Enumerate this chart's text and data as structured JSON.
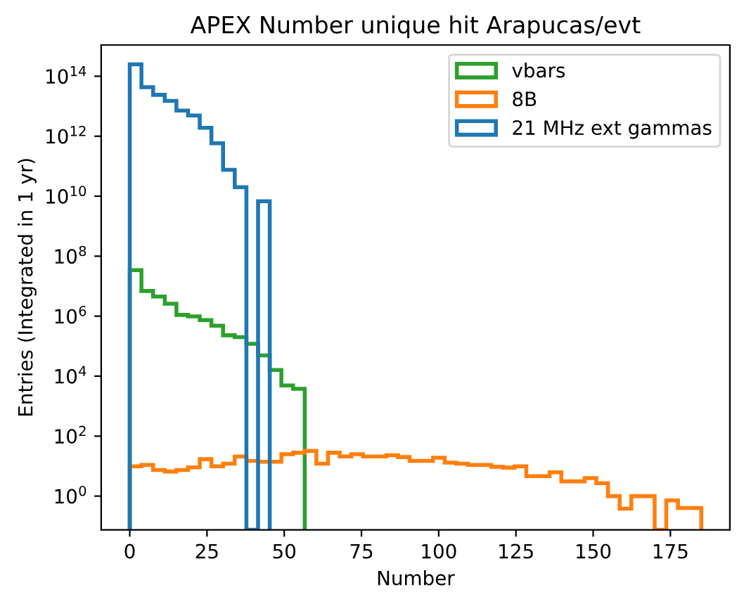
{
  "chart_data": {
    "type": "histogram",
    "title": "APEX Number unique hit Arapucas/evt",
    "xlabel": "Number",
    "ylabel": "Entries (Integrated in 1 yr)",
    "log": "y",
    "bins": [
      0,
      3.78,
      7.55,
      11.33,
      15.1,
      18.88,
      22.65,
      26.43,
      30.2,
      33.98,
      37.76,
      41.53,
      45.31,
      49.08,
      52.86,
      56.63,
      60.41,
      64.18,
      67.96,
      71.73,
      75.51,
      79.29,
      83.06,
      86.84,
      90.61,
      94.39,
      98.16,
      101.94,
      105.71,
      109.49,
      113.27,
      117.04,
      120.82,
      124.59,
      128.37,
      132.14,
      135.92,
      139.69,
      143.47,
      147.24,
      151.02,
      154.8,
      158.57,
      162.35,
      166.12,
      169.9,
      173.67,
      177.45,
      181.22,
      185
    ],
    "series": [
      {
        "name": "vbars",
        "color": "#2ca02c",
        "bins": [
          0,
          3.78,
          7.55,
          11.33,
          15.1,
          18.88,
          22.65,
          26.43,
          30.2,
          33.98,
          37.76,
          41.53,
          45.31,
          49.08,
          52.86,
          56.63
        ],
        "values": [
          34000000.0,
          6900000.0,
          4500000.0,
          2600000.0,
          1100000.0,
          980000.0,
          740000.0,
          480000.0,
          230000.0,
          200000.0,
          120000.0,
          49000.0,
          16000.0,
          4900.0,
          3800.0
        ]
      },
      {
        "name": "8B",
        "color": "#ff7f0e",
        "values": [
          9.8,
          11,
          7.4,
          6.6,
          7.4,
          9.1,
          17,
          9.8,
          12,
          21,
          15,
          14,
          14,
          25,
          28,
          32,
          12,
          28,
          21,
          25,
          21,
          21,
          23,
          20,
          15,
          15,
          19,
          13,
          12,
          11,
          11,
          9.5,
          8.9,
          9.8,
          4.6,
          4.6,
          6.2,
          3.1,
          3.1,
          4.0,
          2.7,
          1.0,
          0.38,
          1.0,
          1.0,
          null,
          0.72,
          0.4,
          0.4
        ]
      },
      {
        "name": "21 MHz ext gammas",
        "color": "#1f77b4",
        "bins": [
          0,
          3.78,
          7.55,
          11.33,
          15.1,
          18.88,
          22.65,
          26.43,
          30.2,
          33.98,
          37.76,
          41.53,
          45.31
        ],
        "values": [
          250000000000000.0,
          43000000000000.0,
          24000000000000.0,
          15000000000000.0,
          7200000000000.0,
          4900000000000.0,
          1900000000000.0,
          580000000000.0,
          76000000000.0,
          20000000000.0,
          null,
          6800000000.0
        ]
      }
    ],
    "xlim": [
      -9.25,
      194.25
    ],
    "xticks": [
      0,
      25,
      50,
      75,
      100,
      125,
      150,
      175
    ],
    "ylim": [
      0.075,
      1100000000000000.0
    ],
    "yticks": [
      {
        "value": 1,
        "label": "10$^{0}$"
      },
      {
        "value": 100,
        "label": "10$^{2}$"
      },
      {
        "value": 10000,
        "label": "10$^{4}$"
      },
      {
        "value": 1000000,
        "label": "10$^{6}$"
      },
      {
        "value": 100000000,
        "label": "10$^{8}$"
      },
      {
        "value": 10000000000,
        "label": "10$^{10}$"
      },
      {
        "value": 1000000000000,
        "label": "10$^{12}$"
      },
      {
        "value": 100000000000000,
        "label": "10$^{14}$"
      }
    ],
    "legend": "top right",
    "grid": false
  }
}
